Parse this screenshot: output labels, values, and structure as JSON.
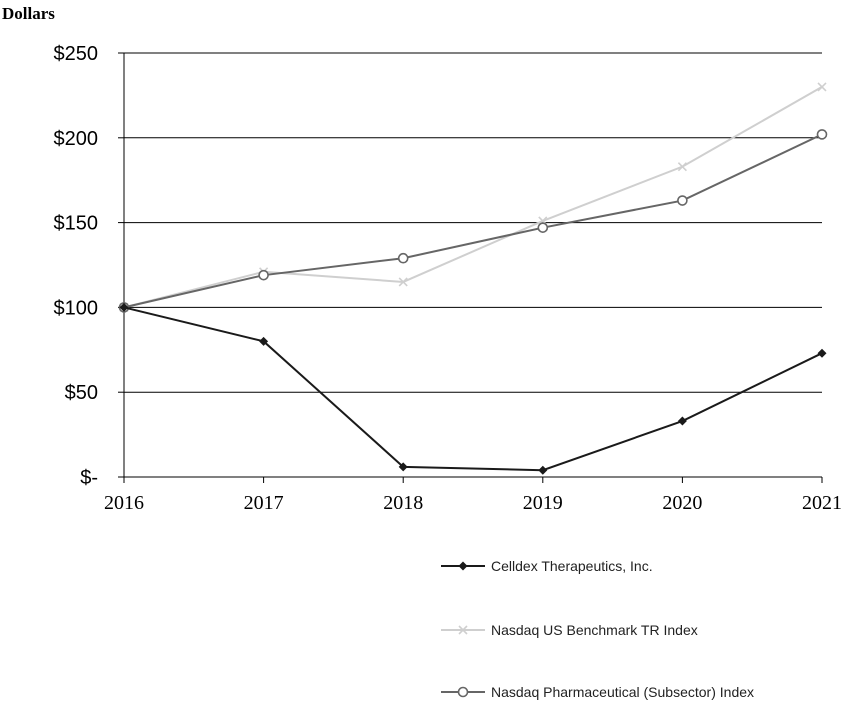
{
  "chart_data": {
    "type": "line",
    "title": "",
    "ylabel": "Dollars",
    "xlabel": "",
    "x": [
      "2016",
      "2017",
      "2018",
      "2019",
      "2020",
      "2021"
    ],
    "ylim": [
      0,
      250
    ],
    "yticks": [
      0,
      50,
      100,
      150,
      200,
      250
    ],
    "ytick_labels": [
      "$-",
      "$50",
      "$100",
      "$150",
      "$200",
      "$250"
    ],
    "grid": "horizontal",
    "legend_position": "bottom-right",
    "series": [
      {
        "name": "Celldex Therapeutics, Inc.",
        "marker": "diamond",
        "color": "#1a1a1a",
        "values": [
          100,
          80,
          6,
          4,
          33,
          73
        ]
      },
      {
        "name": "Nasdaq US Benchmark TR Index",
        "marker": "x",
        "color": "#cfcfcf",
        "values": [
          100,
          121,
          115,
          151,
          183,
          230
        ]
      },
      {
        "name": "Nasdaq Pharmaceutical (Subsector) Index",
        "marker": "circle",
        "color": "#666666",
        "values": [
          100,
          119,
          129,
          147,
          163,
          202
        ]
      }
    ]
  }
}
